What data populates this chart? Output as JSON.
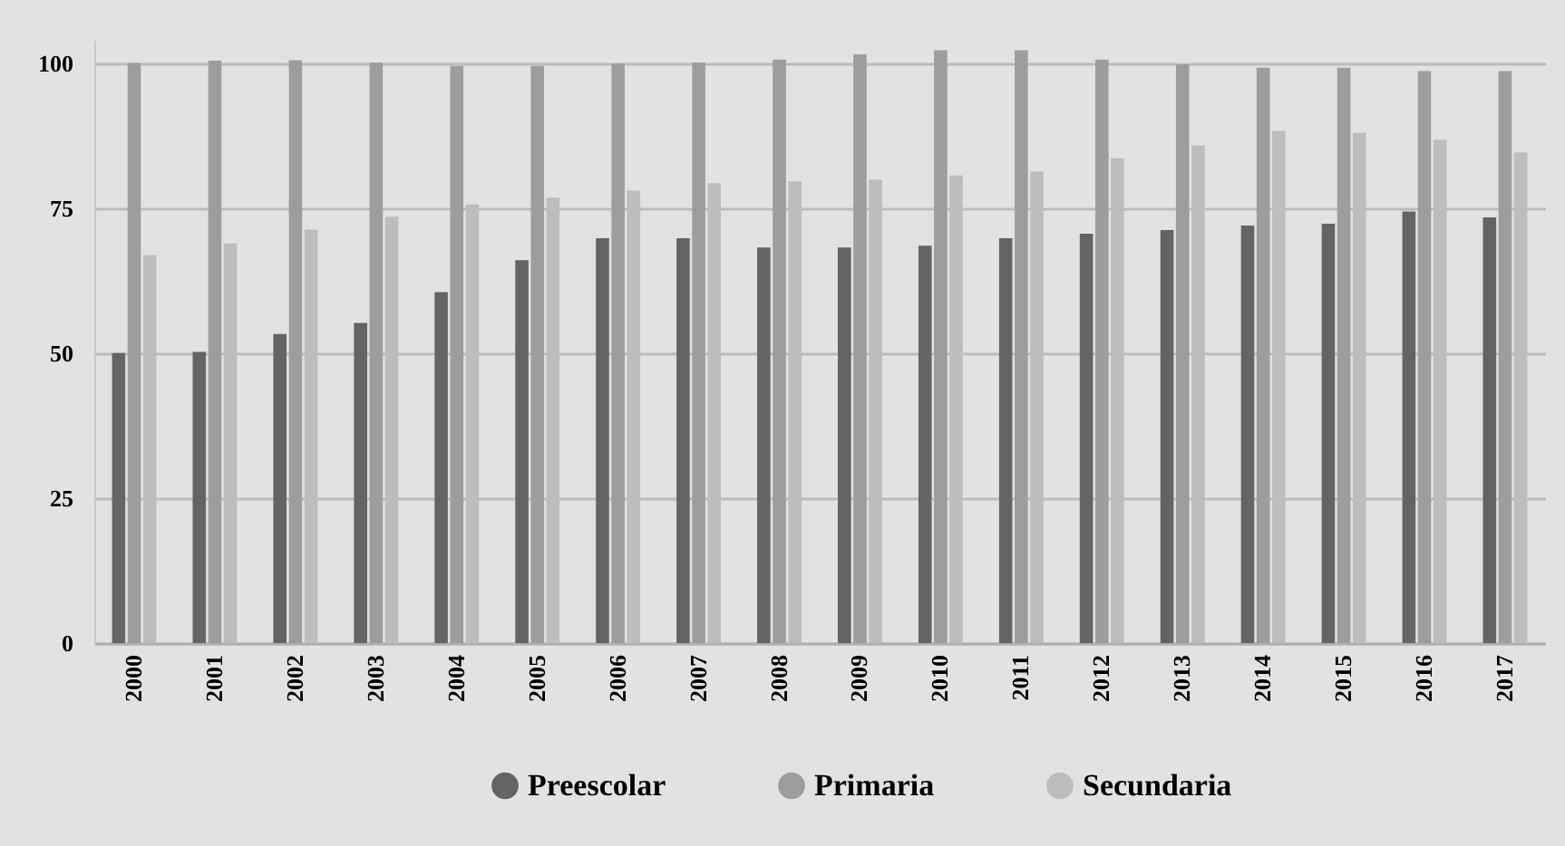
{
  "chart_data": {
    "type": "bar",
    "categories": [
      "2000",
      "2001",
      "2002",
      "2003",
      "2004",
      "2005",
      "2006",
      "2007",
      "2008",
      "2009",
      "2010",
      "2011",
      "2012",
      "2013",
      "2014",
      "2015",
      "2016",
      "2017"
    ],
    "series": [
      {
        "name": "Preescolar",
        "color": "#646464",
        "values": [
          50,
          50.2,
          53.3,
          55.2,
          60.5,
          66,
          69.8,
          69.8,
          68.2,
          68.2,
          68.5,
          69.8,
          70.6,
          71.2,
          72,
          72.3,
          74.4,
          73.4
        ]
      },
      {
        "name": "Primaria",
        "color": "#9d9d9d",
        "values": [
          100,
          100.4,
          100.5,
          100.1,
          99.5,
          99.5,
          99.9,
          100.1,
          100.6,
          101.5,
          102.2,
          102.2,
          100.6,
          99.8,
          99.2,
          99.2,
          98.6,
          98.6
        ]
      },
      {
        "name": "Secundaria",
        "color": "#bdbdbd",
        "values": [
          66.9,
          68.9,
          71.3,
          73.5,
          75.6,
          76.8,
          78,
          79.3,
          79.6,
          79.9,
          80.6,
          81.3,
          83.6,
          85.8,
          88.3,
          88,
          86.8,
          84.6
        ]
      }
    ],
    "ylim": [
      0,
      104
    ],
    "yticks": [
      0,
      25,
      50,
      75,
      100
    ],
    "grid": "y",
    "legend": "bottom"
  }
}
